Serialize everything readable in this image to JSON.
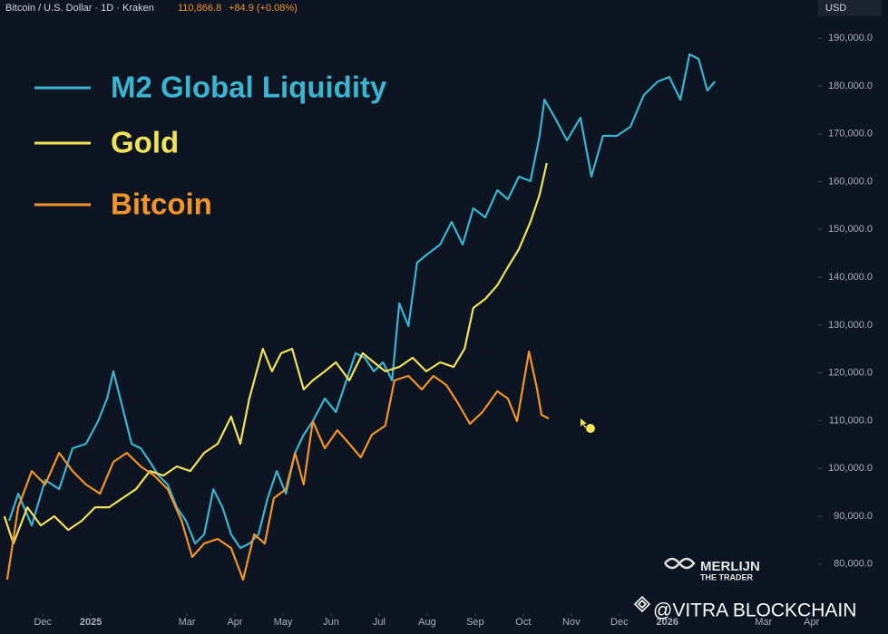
{
  "header": {
    "symbol": "Bitcoin / U.S. Dollar · 1D · Kraken",
    "price": "110,866.8",
    "change": "+84.9 (+0.08%)",
    "currency": "USD"
  },
  "watermark": {
    "brand": "MERLIJN",
    "tagline": "THE TRADER",
    "credit": "@VITRA BLOCKCHAIN"
  },
  "chart_data": {
    "type": "line",
    "legend": "top-left",
    "xlim": [
      0.11,
      17.1
    ],
    "xticks": [
      {
        "value": 1,
        "label": "Dec"
      },
      {
        "value": 2,
        "label": "2025"
      },
      {
        "value": 4,
        "label": "Mar"
      },
      {
        "value": 5,
        "label": "Apr"
      },
      {
        "value": 6,
        "label": "May"
      },
      {
        "value": 7,
        "label": "Jun"
      },
      {
        "value": 8,
        "label": "Jul"
      },
      {
        "value": 9,
        "label": "Aug"
      },
      {
        "value": 10,
        "label": "Sep"
      },
      {
        "value": 11,
        "label": "Oct"
      },
      {
        "value": 12,
        "label": "Nov"
      },
      {
        "value": 13,
        "label": "Dec"
      },
      {
        "value": 14,
        "label": "2026"
      },
      {
        "value": 16,
        "label": "Mar"
      },
      {
        "value": 17,
        "label": "Apr"
      }
    ],
    "ylim": [
      70100,
      198000
    ],
    "yticks": [
      {
        "value": 80000,
        "label": "80,000.0"
      },
      {
        "value": 90000,
        "label": "90,000.0"
      },
      {
        "value": 100000,
        "label": "100,000.0"
      },
      {
        "value": 110000,
        "label": "110,000.0"
      },
      {
        "value": 120000,
        "label": "120,000.0"
      },
      {
        "value": 130000,
        "label": "130,000.0"
      },
      {
        "value": 140000,
        "label": "140,000.0"
      },
      {
        "value": 150000,
        "label": "150,000.0"
      },
      {
        "value": 160000,
        "label": "160,000.0"
      },
      {
        "value": 170000,
        "label": "170,000.0"
      },
      {
        "value": 180000,
        "label": "180,000.0"
      },
      {
        "value": 190000,
        "label": "190,000.0"
      }
    ],
    "series": [
      {
        "name": "M2 Global Liquidity",
        "color": "#3bb4cf",
        "x": [
          0.3,
          0.49,
          0.77,
          1.05,
          1.34,
          1.62,
          1.9,
          2.15,
          2.34,
          2.47,
          2.66,
          2.85,
          3.04,
          3.23,
          3.41,
          3.6,
          3.79,
          3.98,
          4.17,
          4.36,
          4.55,
          4.74,
          4.92,
          5.11,
          5.3,
          5.49,
          5.68,
          5.87,
          6.06,
          6.25,
          6.43,
          6.62,
          6.87,
          7.1,
          7.32,
          7.51,
          7.7,
          7.89,
          8.08,
          8.27,
          8.42,
          8.61,
          8.79,
          9.02,
          9.27,
          9.51,
          9.74,
          9.96,
          10.21,
          10.46,
          10.68,
          10.91,
          11.15,
          11.34,
          11.44,
          11.66,
          11.91,
          12.19,
          12.42,
          12.66,
          12.95,
          13.23,
          13.51,
          13.8,
          14.04,
          14.27,
          14.46,
          14.65,
          14.83,
          14.99
        ],
        "values": [
          89040,
          94720,
          88090,
          97570,
          95670,
          104200,
          105150,
          109880,
          114620,
          120310,
          112730,
          105150,
          104200,
          101360,
          98510,
          96620,
          91880,
          89040,
          84300,
          86200,
          95670,
          91880,
          86200,
          83350,
          84300,
          86200,
          93780,
          99460,
          94720,
          103250,
          107040,
          109880,
          114620,
          111780,
          118410,
          124100,
          123150,
          120310,
          122200,
          118410,
          134520,
          129780,
          143050,
          144940,
          146840,
          151580,
          146840,
          154420,
          152520,
          158210,
          156310,
          161050,
          160100,
          169580,
          177160,
          173370,
          168630,
          173370,
          161050,
          169580,
          169580,
          171470,
          178100,
          180950,
          181890,
          177160,
          186630,
          185680,
          179050,
          180950
        ]
      },
      {
        "name": "Gold",
        "color": "#f1e25b",
        "x": [
          0.2,
          0.39,
          0.68,
          0.96,
          1.24,
          1.53,
          1.81,
          2.09,
          2.38,
          2.66,
          2.94,
          3.23,
          3.51,
          3.79,
          4.07,
          4.36,
          4.64,
          4.92,
          5.11,
          5.3,
          5.58,
          5.77,
          5.96,
          6.19,
          6.43,
          6.62,
          6.87,
          7.1,
          7.38,
          7.66,
          7.89,
          8.13,
          8.42,
          8.7,
          8.98,
          9.27,
          9.55,
          9.78,
          9.96,
          10.21,
          10.46,
          10.68,
          10.91,
          11.15,
          11.34,
          11.49
        ],
        "values": [
          89990,
          84300,
          91880,
          88090,
          89990,
          87140,
          89040,
          91880,
          91880,
          93780,
          95670,
          99460,
          98510,
          100410,
          99460,
          103250,
          105150,
          110830,
          105150,
          114620,
          125040,
          120310,
          124100,
          125040,
          116520,
          118410,
          120310,
          122200,
          118410,
          124100,
          122200,
          120310,
          121250,
          123150,
          120310,
          122200,
          121250,
          125040,
          133570,
          135470,
          138310,
          142100,
          145890,
          151580,
          157260,
          163890
        ]
      },
      {
        "name": "Bitcoin",
        "color": "#f0942b",
        "x": [
          0.26,
          0.49,
          0.77,
          1.05,
          1.34,
          1.62,
          1.9,
          2.19,
          2.47,
          2.75,
          3.04,
          3.32,
          3.6,
          3.89,
          4.11,
          4.36,
          4.64,
          4.92,
          5.17,
          5.4,
          5.62,
          5.81,
          6.06,
          6.25,
          6.43,
          6.62,
          6.87,
          7.13,
          7.38,
          7.62,
          7.85,
          8.13,
          8.32,
          8.61,
          8.89,
          9.13,
          9.4,
          9.64,
          9.89,
          10.15,
          10.46,
          10.68,
          10.87,
          11.12,
          11.29,
          11.38,
          11.53
        ],
        "values": [
          76720,
          91880,
          99460,
          96620,
          103250,
          99460,
          96620,
          94720,
          101360,
          103250,
          100410,
          98510,
          95670,
          89040,
          81460,
          84300,
          85250,
          83350,
          76720,
          86200,
          84300,
          93780,
          95670,
          103250,
          96620,
          109880,
          104200,
          107990,
          105150,
          102310,
          107050,
          108940,
          118410,
          119360,
          116520,
          119360,
          117460,
          113680,
          109330,
          111780,
          116140,
          114620,
          109880,
          124470,
          116520,
          111210,
          110450
        ]
      }
    ]
  }
}
